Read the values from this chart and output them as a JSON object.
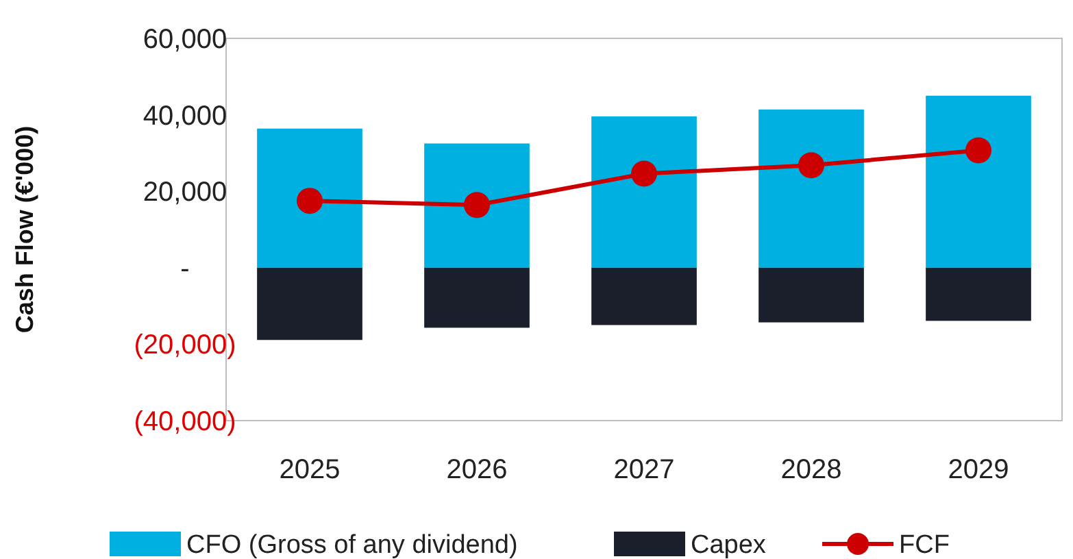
{
  "chart_data": {
    "type": "bar",
    "ylabel": "Cash Flow (€'000)",
    "categories": [
      "2025",
      "2026",
      "2027",
      "2028",
      "2029"
    ],
    "stacked": true,
    "series": [
      {
        "name": "CFO (Gross of any dividend)",
        "color": "#00b0e0",
        "values": [
          36400,
          32500,
          39600,
          41400,
          45000
        ]
      },
      {
        "name": "Capex",
        "color": "#1a1f2b",
        "values": [
          -18900,
          -15700,
          -15000,
          -14300,
          -13900
        ]
      },
      {
        "name": "FCF",
        "type": "line",
        "color": "#cc0000",
        "values": [
          17500,
          16400,
          24600,
          26800,
          30700
        ]
      }
    ],
    "ylim": [
      -40000,
      60000
    ],
    "yticks": [
      {
        "value": -40000,
        "label": "(40,000)"
      },
      {
        "value": -20000,
        "label": "(20,000)"
      },
      {
        "value": 0,
        "label": "-"
      },
      {
        "value": 20000,
        "label": "20,000"
      },
      {
        "value": 40000,
        "label": "40,000"
      },
      {
        "value": 60000,
        "label": "60,000"
      }
    ],
    "grid": false,
    "legend": "bottom",
    "marker": "circle",
    "line_style": "solid"
  }
}
